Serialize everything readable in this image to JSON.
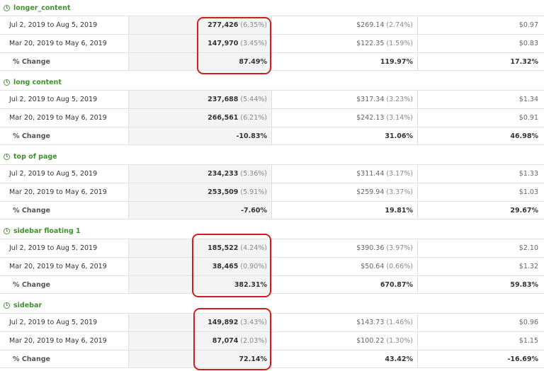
{
  "sections": [
    {
      "title": "longer_content",
      "rows": [
        {
          "label": "Jul 2, 2019 to Aug 5, 2019",
          "value": "277,426",
          "value_pct": "(6.35%)",
          "revenue": "$269.14",
          "revenue_pct": "(2.74%)",
          "rate": "$0.97"
        },
        {
          "label": "Mar 20, 2019 to May 6, 2019",
          "value": "147,970",
          "value_pct": "(3.45%)",
          "revenue": "$122.35",
          "revenue_pct": "(1.59%)",
          "rate": "$0.83"
        }
      ],
      "change": {
        "label": "% Change",
        "value": "87.49%",
        "revenue": "119.97%",
        "rate": "17.32%"
      },
      "highlighted": true
    },
    {
      "title": "long content",
      "rows": [
        {
          "label": "Jul 2, 2019 to Aug 5, 2019",
          "value": "237,688",
          "value_pct": "(5.44%)",
          "revenue": "$317.34",
          "revenue_pct": "(3.23%)",
          "rate": "$1.34"
        },
        {
          "label": "Mar 20, 2019 to May 6, 2019",
          "value": "266,561",
          "value_pct": "(6.21%)",
          "revenue": "$242.13",
          "revenue_pct": "(3.14%)",
          "rate": "$0.91"
        }
      ],
      "change": {
        "label": "% Change",
        "value": "-10.83%",
        "revenue": "31.06%",
        "rate": "46.98%"
      },
      "highlighted": false
    },
    {
      "title": "top of page",
      "rows": [
        {
          "label": "Jul 2, 2019 to Aug 5, 2019",
          "value": "234,233",
          "value_pct": "(5.36%)",
          "revenue": "$311.44",
          "revenue_pct": "(3.17%)",
          "rate": "$1.33"
        },
        {
          "label": "Mar 20, 2019 to May 6, 2019",
          "value": "253,509",
          "value_pct": "(5.91%)",
          "revenue": "$259.94",
          "revenue_pct": "(3.37%)",
          "rate": "$1.03"
        }
      ],
      "change": {
        "label": "% Change",
        "value": "-7.60%",
        "revenue": "19.81%",
        "rate": "29.67%"
      },
      "highlighted": false
    },
    {
      "title": "sidebar floating 1",
      "rows": [
        {
          "label": "Jul 2, 2019 to Aug 5, 2019",
          "value": "185,522",
          "value_pct": "(4.24%)",
          "revenue": "$390.36",
          "revenue_pct": "(3.97%)",
          "rate": "$2.10"
        },
        {
          "label": "Mar 20, 2019 to May 6, 2019",
          "value": "38,465",
          "value_pct": "(0.90%)",
          "revenue": "$50.64",
          "revenue_pct": "(0.66%)",
          "rate": "$1.32"
        }
      ],
      "change": {
        "label": "% Change",
        "value": "382.31%",
        "revenue": "670.87%",
        "rate": "59.83%"
      },
      "highlighted": true
    },
    {
      "title": "sidebar",
      "rows": [
        {
          "label": "Jul 2, 2019 to Aug 5, 2019",
          "value": "149,892",
          "value_pct": "(3.43%)",
          "revenue": "$143.73",
          "revenue_pct": "(1.46%)",
          "rate": "$0.96"
        },
        {
          "label": "Mar 20, 2019 to May 6, 2019",
          "value": "87,074",
          "value_pct": "(2.03%)",
          "revenue": "$100.22",
          "revenue_pct": "(1.30%)",
          "rate": "$1.15"
        }
      ],
      "change": {
        "label": "% Change",
        "value": "72.14%",
        "revenue": "43.42%",
        "rate": "-16.69%"
      },
      "highlighted": true
    }
  ],
  "colors": {
    "accent_green": "#3f8f2f",
    "highlight_red": "#d11f1f"
  },
  "icons": {
    "section_icon": "clock-icon"
  }
}
